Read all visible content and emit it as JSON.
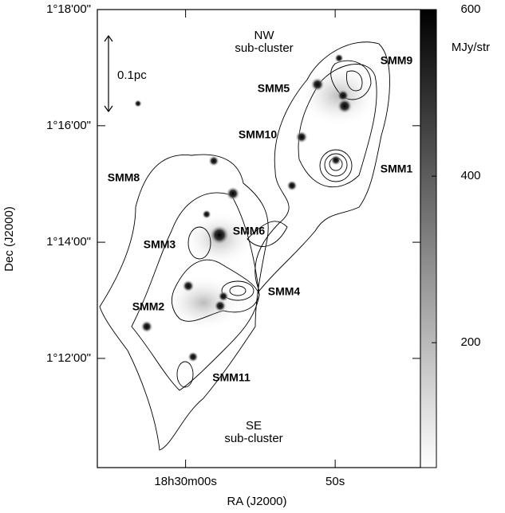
{
  "chart_data": {
    "type": "image",
    "x_label": "RA (J2000)",
    "y_label": "Dec (J2000)",
    "xlim": [
      65.9,
      44.3
    ],
    "xticks": [
      {
        "value": 60,
        "label": "18h30m00s"
      },
      {
        "value": 50,
        "label": "50s"
      }
    ],
    "ylim": [
      1.1687,
      1.3
    ],
    "yticks": [
      {
        "value": 1.3,
        "label": "1°18'00\""
      },
      {
        "value": 1.2667,
        "label": "1°16'00\""
      },
      {
        "value": 1.2333,
        "label": "1°14'00\""
      },
      {
        "value": 1.2,
        "label": "1°12'00\""
      }
    ],
    "colorbar": {
      "label": "MJy/str",
      "lim": [
        50,
        600
      ],
      "ticks": [
        200,
        400,
        600
      ]
    },
    "scale_bar": "0.1pc",
    "annotations": [
      "SMM9",
      "SMM5",
      "SMM10",
      "SMM1",
      "SMM8",
      "SMM6",
      "SMM3",
      "SMM4",
      "SMM2",
      "SMM11"
    ],
    "regions": [
      [
        "NW",
        "sub-cluster"
      ],
      [
        "SE",
        "sub-cluster"
      ]
    ]
  }
}
